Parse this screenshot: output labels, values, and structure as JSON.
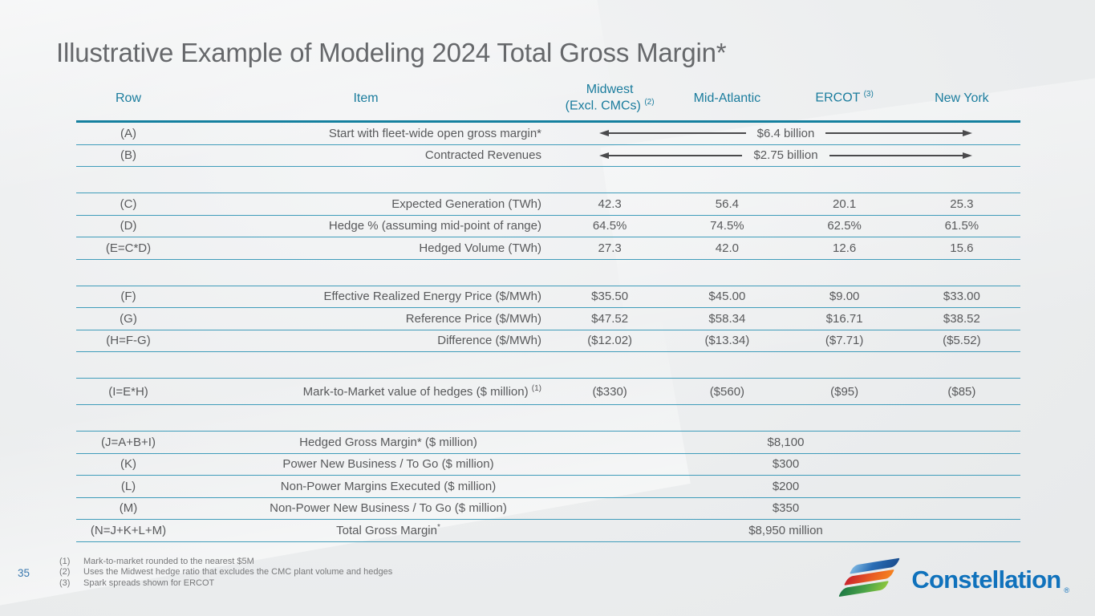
{
  "slide": {
    "title": "Illustrative Example of Modeling 2024 Total Gross Margin*",
    "page_number": "35"
  },
  "colors": {
    "header_text": "#1a7c9d",
    "line_thin": "#3f9cba",
    "line_thick": "#15809f",
    "body_text": "#58595b",
    "title_text": "#66686b",
    "footnote_text": "#77787a",
    "page_number_text": "#3a78ae",
    "brand_blue": "#1072bc",
    "logo_stripe_blue": "#1b4e8f",
    "logo_stripe_orange": "#f5821f",
    "logo_stripe_green": "#8dc63f"
  },
  "table": {
    "columns": {
      "row": "Row",
      "item": "Item",
      "regions": [
        {
          "line1": "Midwest",
          "line2": "(Excl. CMCs)",
          "sup": "(2)"
        },
        {
          "line1": "Mid-Atlantic",
          "line2": "",
          "sup": ""
        },
        {
          "line1": "ERCOT",
          "line2": "",
          "sup": "(3)"
        },
        {
          "line1": "New York",
          "line2": "",
          "sup": ""
        }
      ]
    },
    "rows": {
      "a": {
        "row": "(A)",
        "item": "Start with fleet-wide open gross margin*",
        "span_value": "$6.4 billion"
      },
      "b": {
        "row": "(B)",
        "item": "Contracted Revenues",
        "span_value": "$2.75 billion"
      },
      "c": {
        "row": "(C)",
        "item": "Expected Generation (TWh)",
        "values": [
          "42.3",
          "56.4",
          "20.1",
          "25.3"
        ]
      },
      "d": {
        "row": "(D)",
        "item": "Hedge % (assuming mid-point of range)",
        "values": [
          "64.5%",
          "74.5%",
          "62.5%",
          "61.5%"
        ]
      },
      "e": {
        "row": "(E=C*D)",
        "item": "Hedged Volume (TWh)",
        "values": [
          "27.3",
          "42.0",
          "12.6",
          "15.6"
        ]
      },
      "f": {
        "row": "(F)",
        "item": "Effective Realized Energy Price ($/MWh)",
        "values": [
          "$35.50",
          "$45.00",
          "$9.00",
          "$33.00"
        ]
      },
      "g": {
        "row": "(G)",
        "item": "Reference Price ($/MWh)",
        "values": [
          "$47.52",
          "$58.34",
          "$16.71",
          "$38.52"
        ]
      },
      "h": {
        "row": "(H=F-G)",
        "item": "Difference ($/MWh)",
        "values": [
          "($12.02)",
          "($13.34)",
          "($7.71)",
          "($5.52)"
        ]
      },
      "i": {
        "row": "(I=E*H)",
        "item": "Mark-to-Market value of hedges ($ million)",
        "item_sup": "(1)",
        "values": [
          "($330)",
          "($560)",
          "($95)",
          "($85)"
        ]
      },
      "j": {
        "row": "(J=A+B+I)",
        "item": "Hedged Gross Margin* ($ million)",
        "span_value": "$8,100"
      },
      "k": {
        "row": "(K)",
        "item": "Power New Business / To Go ($ million)",
        "span_value": "$300"
      },
      "l": {
        "row": "(L)",
        "item": "Non-Power Margins Executed ($ million)",
        "span_value": "$200"
      },
      "m": {
        "row": "(M)",
        "item": "Non-Power New Business / To Go ($ million)",
        "span_value": "$350"
      },
      "n": {
        "row": "(N=J+K+L+M)",
        "item": "Total Gross Margin",
        "item_sup": "*",
        "span_value": "$8,950 million"
      }
    }
  },
  "footnotes": [
    {
      "num": "(1)",
      "text": "Mark-to-market rounded to the nearest $5M"
    },
    {
      "num": "(2)",
      "text": "Uses the Midwest hedge ratio that excludes the CMC plant volume and hedges"
    },
    {
      "num": "(3)",
      "text": "Spark spreads shown for ERCOT"
    }
  ],
  "logo": {
    "wordmark": "Constellation",
    "reg_mark": "®"
  }
}
